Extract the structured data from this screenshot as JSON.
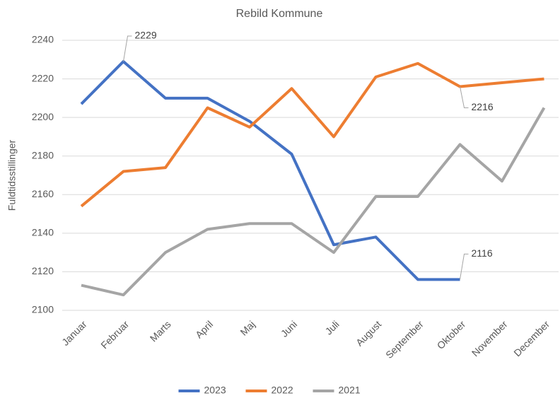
{
  "chart_data": {
    "type": "line",
    "title": "Rebild Kommune",
    "y_label": "Fuldtidsstillinger",
    "categories": [
      "Januar",
      "Februar",
      "Marts",
      "April",
      "Maj",
      "Juni",
      "Juli",
      "August",
      "September",
      "Oktober",
      "November",
      "December"
    ],
    "series": [
      {
        "name": "2023",
        "color": "#4472c4",
        "values": [
          2207,
          2229,
          2210,
          2210,
          2198,
          2181,
          2134,
          2138,
          2116,
          2116,
          null,
          null
        ],
        "value_labels": [
          null,
          "2229",
          null,
          null,
          null,
          null,
          null,
          null,
          null,
          "2116",
          null,
          null
        ]
      },
      {
        "name": "2022",
        "color": "#ed7d31",
        "values": [
          2154,
          2172,
          2174,
          2205,
          2195,
          2215,
          2190,
          2221,
          2228,
          2216,
          2218,
          2220
        ],
        "value_labels": [
          null,
          null,
          null,
          null,
          null,
          null,
          null,
          null,
          null,
          "2216",
          null,
          null
        ]
      },
      {
        "name": "2021",
        "color": "#a5a5a5",
        "values": [
          2113,
          2108,
          2130,
          2142,
          2145,
          2145,
          2130,
          2159,
          2159,
          2186,
          2167,
          2205
        ]
      }
    ],
    "ylim": [
      2100,
      2240
    ],
    "yticks": [
      2100,
      2120,
      2140,
      2160,
      2180,
      2200,
      2220,
      2240
    ],
    "grid": true,
    "legend": "bottom"
  }
}
